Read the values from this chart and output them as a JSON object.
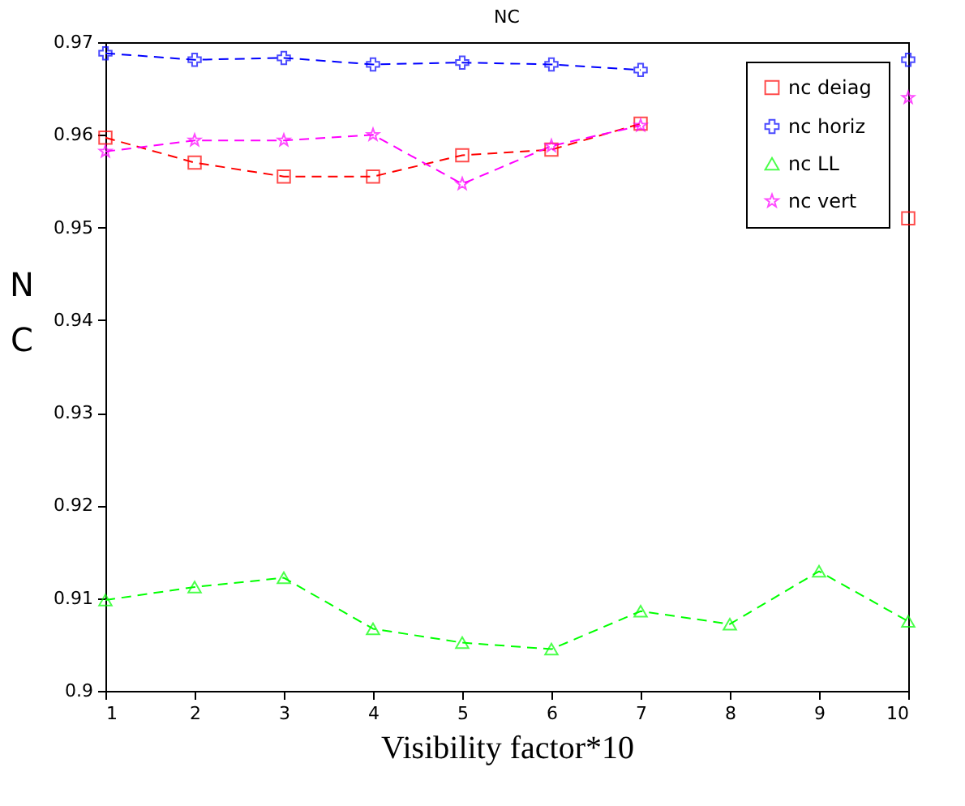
{
  "chart_data": {
    "type": "line",
    "title": "NC",
    "xlabel": "Visibility factor*10",
    "ylabel": "NC",
    "x": [
      1,
      2,
      3,
      4,
      5,
      6,
      7,
      8,
      9,
      10
    ],
    "series": [
      {
        "name": "nc deiag",
        "color": "#ff0000",
        "marker": "square",
        "values": [
          0.9597,
          0.957,
          0.9555,
          0.9555,
          0.9578,
          0.9584,
          0.9612,
          null,
          null,
          0.951
        ]
      },
      {
        "name": "nc horiz",
        "color": "#0000ff",
        "marker": "cross",
        "values": [
          0.9688,
          0.9681,
          0.9683,
          0.9676,
          0.9678,
          0.9676,
          0.967,
          null,
          null,
          0.9681
        ]
      },
      {
        "name": "nc LL",
        "color": "#00ff00",
        "marker": "triangle",
        "values": [
          0.9098,
          0.9112,
          0.9122,
          0.9067,
          0.9052,
          0.9045,
          0.9086,
          0.9072,
          0.9129,
          0.9075
        ]
      },
      {
        "name": "nc vert",
        "color": "#ff00ff",
        "marker": "star",
        "values": [
          0.9582,
          0.9594,
          0.9594,
          0.96,
          0.9547,
          0.9588,
          0.961,
          null,
          null,
          0.964
        ]
      }
    ],
    "xlim": [
      1,
      10
    ],
    "xticks": [
      1,
      2,
      3,
      4,
      5,
      6,
      7,
      8,
      9,
      10
    ],
    "ylim": [
      0.9,
      0.97
    ],
    "yticks": [
      0.9,
      0.91,
      0.92,
      0.93,
      0.94,
      0.95,
      0.96,
      0.97
    ],
    "grid": false,
    "legend": "top right",
    "line_style": "dashed"
  }
}
